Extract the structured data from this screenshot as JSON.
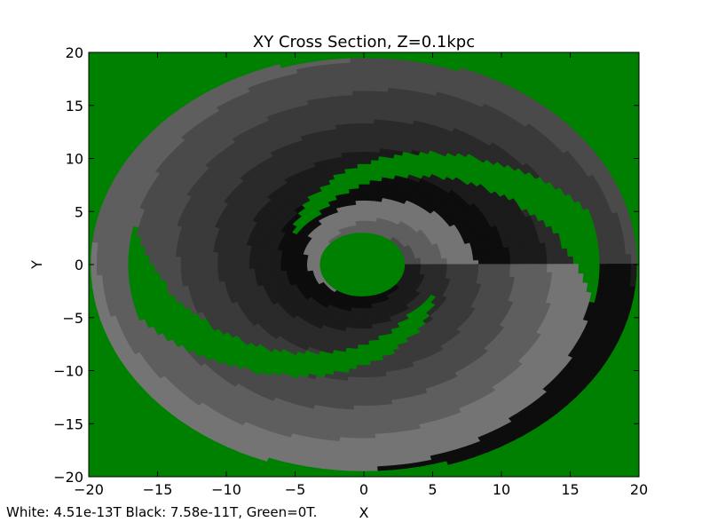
{
  "chart_data": {
    "type": "heatmap",
    "title": "XY Cross Section, Z=0.1kpc",
    "xlabel": "X",
    "ylabel": "Y",
    "xlim": [
      -20,
      20
    ],
    "ylim": [
      -20,
      20
    ],
    "xticks": [
      -20,
      -15,
      -10,
      -5,
      0,
      5,
      10,
      15,
      20
    ],
    "yticks": [
      -20,
      -15,
      -10,
      -5,
      0,
      5,
      10,
      15,
      20
    ],
    "colors": {
      "background": "#008000",
      "bands": [
        "#2a2a2a",
        "#3a3a3a",
        "#4a4a4a",
        "#5e5e5e",
        "#747474",
        "#0d0d0d",
        "#1b1b1b"
      ]
    },
    "grid": false
  },
  "footer": {
    "note": "White: 4.51e-13T  Black: 7.58e-11T, Green=0T."
  }
}
